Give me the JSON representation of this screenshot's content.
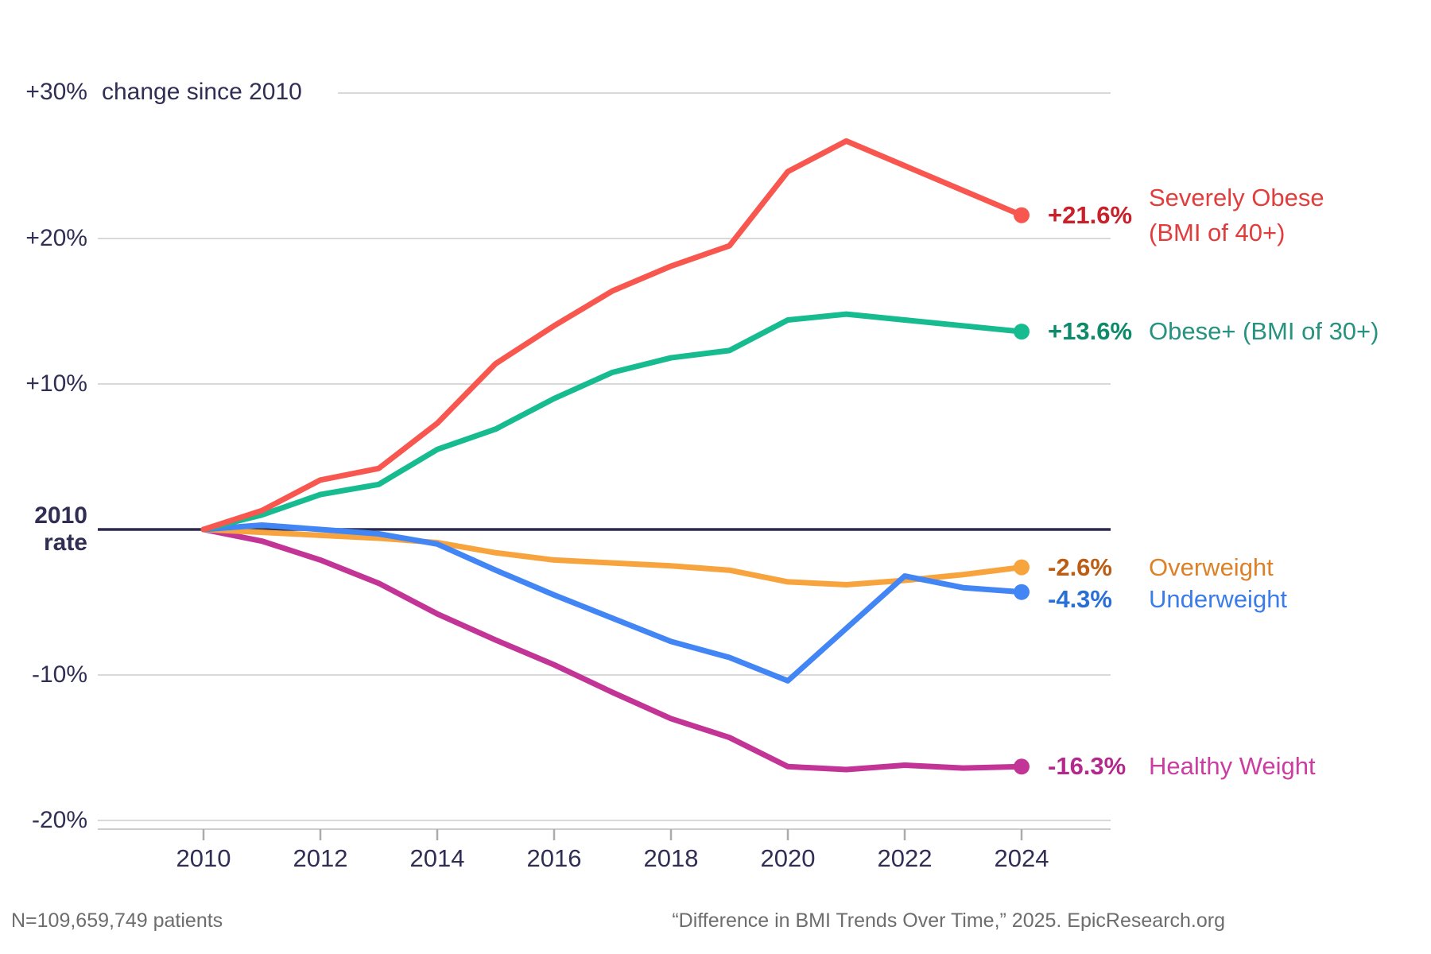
{
  "chart_data": {
    "type": "line",
    "title": "+30% change since 2010",
    "title_parts": {
      "tick": "+30%",
      "text": "change since 2010"
    },
    "x": [
      2010,
      2011,
      2012,
      2013,
      2014,
      2015,
      2016,
      2017,
      2018,
      2019,
      2020,
      2021,
      2022,
      2023,
      2024
    ],
    "x_ticks": [
      "2010",
      "2012",
      "2014",
      "2016",
      "2018",
      "2020",
      "2022",
      "2024"
    ],
    "ylim": [
      -22,
      32
    ],
    "grid": true,
    "y_axis": {
      "top_tick": {
        "label": "+30%",
        "value": 30
      },
      "ticks": [
        {
          "label": "+20%",
          "value": 20
        },
        {
          "label": "+10%",
          "value": 10
        },
        {
          "label": "-10%",
          "value": -10
        },
        {
          "label": "-20%",
          "value": -20
        }
      ],
      "zero": {
        "line1": "2010",
        "line2": "rate",
        "value": 0
      },
      "gridline_values": [
        30,
        20,
        10,
        -10,
        -20
      ]
    },
    "series": [
      {
        "id": "healthy-weight",
        "name": "Healthy Weight",
        "label_lines": [
          "Healthy Weight"
        ],
        "end_label": "-16.3%",
        "line_color": "#c23597",
        "value_color": "#b32a8c",
        "label_color": "#ca3da1",
        "values": [
          0,
          -0.8,
          -2.1,
          -3.7,
          -5.8,
          -7.6,
          -9.3,
          -11.2,
          -13.0,
          -14.3,
          -16.3,
          -16.5,
          -16.2,
          -16.4,
          -16.3
        ]
      },
      {
        "id": "overweight",
        "name": "Overweight",
        "label_lines": [
          "Overweight"
        ],
        "end_label": "-2.6%",
        "line_color": "#f8a43e",
        "value_color": "#bd5d14",
        "label_color": "#dc8128",
        "values": [
          0,
          -0.2,
          -0.4,
          -0.6,
          -0.9,
          -1.6,
          -2.1,
          -2.3,
          -2.5,
          -2.8,
          -3.6,
          -3.8,
          -3.5,
          -3.1,
          -2.6
        ]
      },
      {
        "id": "underweight",
        "name": "Underweight",
        "label_lines": [
          "Underweight"
        ],
        "end_label": "-4.3%",
        "line_color": "#4285f4",
        "value_color": "#2a6fd6",
        "label_color": "#3a7ce8",
        "values": [
          0,
          0.3,
          0.0,
          -0.3,
          -1.0,
          -2.8,
          -4.5,
          -6.1,
          -7.7,
          -8.8,
          -10.4,
          -6.8,
          -3.2,
          -4.0,
          -4.3
        ]
      },
      {
        "id": "obese-plus",
        "name": "Obese+ (BMI of 30+)",
        "label_lines": [
          "Obese+ (BMI of 30+)"
        ],
        "end_label": "+13.6%",
        "line_color": "#16bb8f",
        "value_color": "#0d8a6a",
        "label_color": "#27927f",
        "values": [
          0,
          1.0,
          2.4,
          3.1,
          5.5,
          6.9,
          9.0,
          10.8,
          11.8,
          12.3,
          14.4,
          14.8,
          14.4,
          14.0,
          13.6
        ]
      },
      {
        "id": "severely-obese",
        "name": "Severely Obese (BMI of 40+)",
        "label_lines": [
          "Severely Obese",
          "(BMI of 40+)"
        ],
        "end_label": "+21.6%",
        "line_color": "#f8574f",
        "value_color": "#c9202a",
        "label_color": "#e23d3d",
        "values": [
          0,
          1.3,
          3.4,
          4.2,
          7.3,
          11.4,
          14.0,
          16.4,
          18.1,
          19.5,
          24.6,
          26.7,
          25.0,
          23.3,
          21.6
        ]
      }
    ]
  },
  "footer": {
    "left": "N=109,659,749 patients",
    "right": "“Difference in BMI Trends Over Time,” 2025. EpicResearch.org"
  }
}
